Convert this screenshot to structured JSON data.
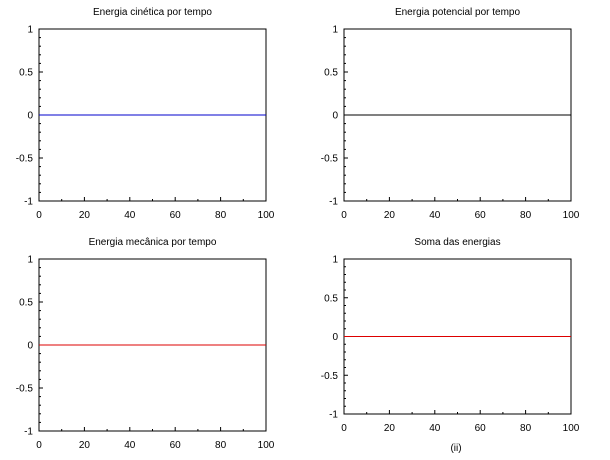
{
  "figure": {
    "caption": "(ii)"
  },
  "chart_data": [
    {
      "type": "line",
      "title": "Energia cinética por tempo",
      "xlim": [
        0,
        100
      ],
      "ylim": [
        -1,
        1
      ],
      "xticks": [
        0,
        20,
        40,
        60,
        80,
        100
      ],
      "yticks": [
        1,
        0.5,
        0,
        -0.5,
        -1
      ],
      "xtick_labels": [
        "0",
        "20",
        "40",
        "60",
        "80",
        "100"
      ],
      "ytick_labels": [
        "1",
        "0.5",
        "0",
        "-0.5",
        "-1"
      ],
      "series": [
        {
          "color": "#0000cc",
          "x": [
            0,
            100
          ],
          "y": [
            0,
            0
          ]
        }
      ]
    },
    {
      "type": "line",
      "title": "Energia potencial por tempo",
      "xlim": [
        0,
        100
      ],
      "ylim": [
        -1,
        1
      ],
      "xticks": [
        0,
        20,
        40,
        60,
        80,
        100
      ],
      "yticks": [
        1,
        0.5,
        0,
        -0.5,
        -1
      ],
      "xtick_labels": [
        "0",
        "20",
        "40",
        "60",
        "80",
        "100"
      ],
      "ytick_labels": [
        "1",
        "0.5",
        "0",
        "-0.5",
        "-1"
      ],
      "series": [
        {
          "color": "#000000",
          "x": [
            0,
            100
          ],
          "y": [
            0,
            0
          ]
        }
      ]
    },
    {
      "type": "line",
      "title": "Energia mecânica por tempo",
      "xlim": [
        0,
        100
      ],
      "ylim": [
        -1,
        1
      ],
      "xticks": [
        0,
        20,
        40,
        60,
        80,
        100
      ],
      "yticks": [
        1,
        0.5,
        0,
        -0.5,
        -1
      ],
      "xtick_labels": [
        "0",
        "20",
        "40",
        "60",
        "80",
        "100"
      ],
      "ytick_labels": [
        "1",
        "0.5",
        "0",
        "-0.5",
        "-1"
      ],
      "series": [
        {
          "color": "#dd0000",
          "x": [
            0,
            100
          ],
          "y": [
            0,
            0
          ]
        }
      ]
    },
    {
      "type": "line",
      "title": "Soma das energias",
      "xlim": [
        0,
        100
      ],
      "ylim": [
        -1,
        1
      ],
      "xticks": [
        0,
        20,
        40,
        60,
        80,
        100
      ],
      "yticks": [
        1,
        0.5,
        0,
        -0.5,
        -1
      ],
      "xtick_labels": [
        "0",
        "20",
        "40",
        "60",
        "80",
        "100"
      ],
      "ytick_labels": [
        "1",
        "0.5",
        "0",
        "-0.5",
        "-1"
      ],
      "series": [
        {
          "color": "#dd0000",
          "x": [
            0,
            100
          ],
          "y": [
            0,
            0
          ]
        }
      ]
    }
  ]
}
